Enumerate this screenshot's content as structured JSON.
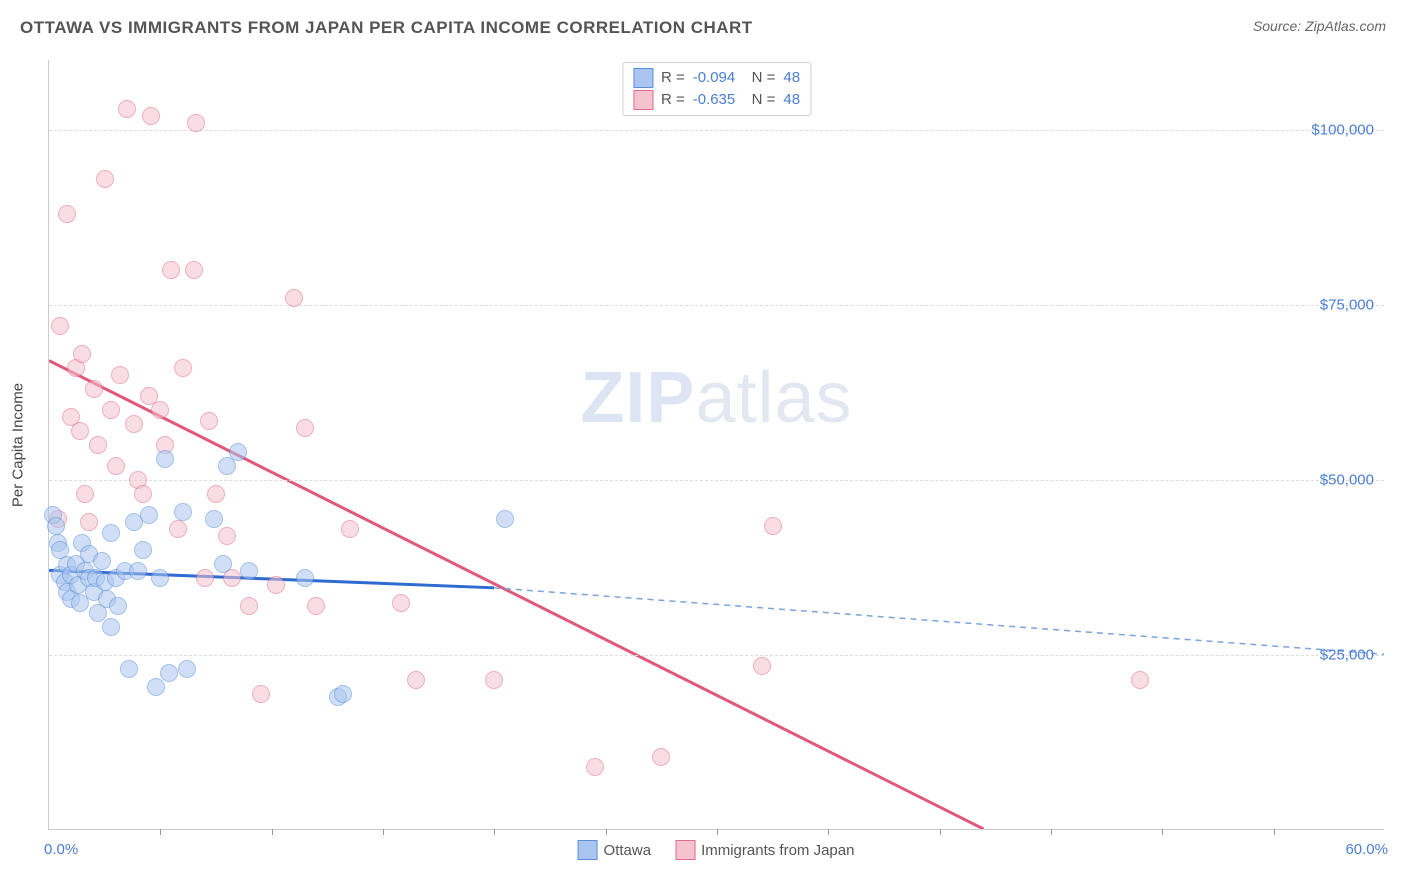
{
  "header": {
    "title": "OTTAWA VS IMMIGRANTS FROM JAPAN PER CAPITA INCOME CORRELATION CHART",
    "source": "Source: ZipAtlas.com"
  },
  "watermark": {
    "zip": "ZIP",
    "atlas": "atlas"
  },
  "chart": {
    "type": "scatter",
    "ylabel": "Per Capita Income",
    "xlim": [
      0,
      60
    ],
    "ylim": [
      0,
      110000
    ],
    "yticks": [
      {
        "v": 25000,
        "label": "$25,000"
      },
      {
        "v": 50000,
        "label": "$50,000"
      },
      {
        "v": 75000,
        "label": "$75,000"
      },
      {
        "v": 100000,
        "label": "$100,000"
      }
    ],
    "xticks_minor": [
      5,
      10,
      15,
      20,
      25,
      30,
      35,
      40,
      45,
      50,
      55
    ],
    "xaxis_labels": {
      "left": "0.0%",
      "right": "60.0%"
    },
    "background_color": "#ffffff",
    "grid_color": "#dddddd",
    "marker_radius": 8,
    "marker_opacity": 0.55,
    "series": {
      "ottawa": {
        "label": "Ottawa",
        "fill": "#aac6f0",
        "stroke": "#5b8fd6",
        "R": "-0.094",
        "N": "48",
        "trend": {
          "x1": 0,
          "y1": 37000,
          "x2": 20,
          "y2": 34500,
          "color": "#2e6bd1",
          "width": 3,
          "dash": "none"
        },
        "trend_ext": {
          "x1": 20,
          "y1": 34500,
          "x2": 60,
          "y2": 25000,
          "color": "#7ba3dc",
          "width": 1.5,
          "dash": "6,5"
        },
        "points": [
          [
            0.2,
            45000
          ],
          [
            0.3,
            43500
          ],
          [
            0.4,
            41000
          ],
          [
            0.5,
            40000
          ],
          [
            0.5,
            36500
          ],
          [
            0.7,
            35500
          ],
          [
            0.8,
            37800
          ],
          [
            0.8,
            34000
          ],
          [
            1.0,
            36500
          ],
          [
            1.0,
            33000
          ],
          [
            1.2,
            38000
          ],
          [
            1.3,
            35000
          ],
          [
            1.4,
            32500
          ],
          [
            1.5,
            41000
          ],
          [
            1.6,
            37000
          ],
          [
            1.8,
            36000
          ],
          [
            1.8,
            39500
          ],
          [
            2.0,
            34000
          ],
          [
            2.1,
            36000
          ],
          [
            2.2,
            31000
          ],
          [
            2.4,
            38500
          ],
          [
            2.5,
            35500
          ],
          [
            2.6,
            33000
          ],
          [
            2.8,
            42500
          ],
          [
            2.8,
            29000
          ],
          [
            3.0,
            36000
          ],
          [
            3.1,
            32000
          ],
          [
            3.4,
            37000
          ],
          [
            3.6,
            23000
          ],
          [
            3.8,
            44000
          ],
          [
            4.0,
            37000
          ],
          [
            4.2,
            40000
          ],
          [
            4.5,
            45000
          ],
          [
            4.8,
            20500
          ],
          [
            5.0,
            36000
          ],
          [
            5.2,
            53000
          ],
          [
            5.4,
            22500
          ],
          [
            6.0,
            45500
          ],
          [
            6.2,
            23000
          ],
          [
            7.4,
            44500
          ],
          [
            7.8,
            38000
          ],
          [
            8.0,
            52000
          ],
          [
            8.5,
            54000
          ],
          [
            9.0,
            37000
          ],
          [
            11.5,
            36000
          ],
          [
            13.0,
            19000
          ],
          [
            13.2,
            19500
          ],
          [
            20.5,
            44500
          ]
        ]
      },
      "japan": {
        "label": "Immigrants from Japan",
        "fill": "#f5c2cf",
        "stroke": "#e06d8b",
        "R": "-0.635",
        "N": "48",
        "trend": {
          "x1": 0,
          "y1": 67000,
          "x2": 42,
          "y2": 0,
          "color": "#e2587d",
          "width": 3,
          "dash": "none"
        },
        "points": [
          [
            0.5,
            72000
          ],
          [
            0.8,
            88000
          ],
          [
            1.0,
            59000
          ],
          [
            1.2,
            66000
          ],
          [
            1.4,
            57000
          ],
          [
            1.5,
            68000
          ],
          [
            1.6,
            48000
          ],
          [
            1.8,
            44000
          ],
          [
            2.0,
            63000
          ],
          [
            2.2,
            55000
          ],
          [
            2.5,
            93000
          ],
          [
            2.8,
            60000
          ],
          [
            3.0,
            52000
          ],
          [
            3.2,
            65000
          ],
          [
            3.5,
            103000
          ],
          [
            3.8,
            58000
          ],
          [
            4.0,
            50000
          ],
          [
            4.2,
            48000
          ],
          [
            4.5,
            62000
          ],
          [
            4.6,
            102000
          ],
          [
            5.0,
            60000
          ],
          [
            5.2,
            55000
          ],
          [
            5.5,
            80000
          ],
          [
            5.8,
            43000
          ],
          [
            6.0,
            66000
          ],
          [
            6.5,
            80000
          ],
          [
            6.6,
            101000
          ],
          [
            7.0,
            36000
          ],
          [
            7.2,
            58500
          ],
          [
            7.5,
            48000
          ],
          [
            8.0,
            42000
          ],
          [
            8.2,
            36000
          ],
          [
            9.0,
            32000
          ],
          [
            9.5,
            19500
          ],
          [
            10.2,
            35000
          ],
          [
            11.0,
            76000
          ],
          [
            11.5,
            57500
          ],
          [
            12.0,
            32000
          ],
          [
            13.5,
            43000
          ],
          [
            15.8,
            32500
          ],
          [
            16.5,
            21500
          ],
          [
            20.0,
            21500
          ],
          [
            24.5,
            9000
          ],
          [
            27.5,
            10500
          ],
          [
            32.0,
            23500
          ],
          [
            32.5,
            43500
          ],
          [
            49.0,
            21500
          ],
          [
            0.4,
            44500
          ]
        ]
      }
    }
  },
  "bottom_legend": {
    "ottawa": "Ottawa",
    "japan": "Immigrants from Japan"
  }
}
